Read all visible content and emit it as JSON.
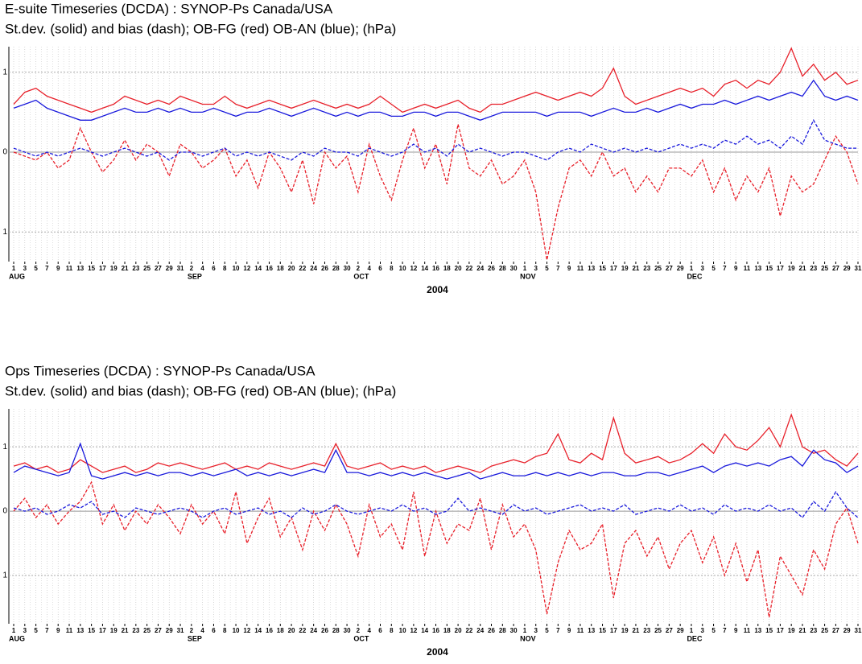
{
  "chart_data": [
    {
      "type": "line",
      "title": "E-suite Timeseries (DCDA) : SYNOP-Ps  Canada/USA",
      "subtitle": "St.dev. (solid) and bias (dash);  OB-FG (red) OB-AN (blue); (hPa)",
      "xlabel": "2004",
      "categories": [
        "1",
        "3",
        "5",
        "7",
        "9",
        "11",
        "13",
        "15",
        "17",
        "19",
        "21",
        "23",
        "25",
        "27",
        "29",
        "31",
        "2",
        "4",
        "6",
        "8",
        "10",
        "12",
        "14",
        "16",
        "18",
        "20",
        "22",
        "24",
        "26",
        "28",
        "30",
        "2",
        "4",
        "6",
        "8",
        "10",
        "12",
        "14",
        "16",
        "18",
        "20",
        "22",
        "24",
        "26",
        "28",
        "30",
        "1",
        "3",
        "5",
        "7",
        "9",
        "11",
        "13",
        "15",
        "17",
        "19",
        "21",
        "23",
        "25",
        "27",
        "29",
        "1",
        "3",
        "5",
        "7",
        "9",
        "11",
        "13",
        "15",
        "17",
        "19",
        "21",
        "23",
        "25",
        "27",
        "29",
        "31"
      ],
      "month_labels": [
        "AUG",
        null,
        null,
        null,
        null,
        null,
        null,
        null,
        null,
        null,
        null,
        null,
        null,
        null,
        null,
        null,
        "SEP",
        null,
        null,
        null,
        null,
        null,
        null,
        null,
        null,
        null,
        null,
        null,
        null,
        null,
        null,
        "OCT",
        null,
        null,
        null,
        null,
        null,
        null,
        null,
        null,
        null,
        null,
        null,
        null,
        null,
        null,
        "NOV",
        null,
        null,
        null,
        null,
        null,
        null,
        null,
        null,
        null,
        null,
        null,
        null,
        null,
        null,
        "DEC",
        null,
        null,
        null,
        null,
        null,
        null,
        null,
        null,
        null,
        null,
        null,
        null,
        null,
        null,
        null
      ],
      "ylim": [
        -1.37,
        1.32
      ],
      "yticks": [
        {
          "value": -1,
          "label": "1"
        },
        0,
        1
      ],
      "grid": true,
      "series": [
        {
          "color": "#e8202a",
          "dash": false,
          "values": [
            0.6,
            0.75,
            0.8,
            0.7,
            0.65,
            0.6,
            0.55,
            0.5,
            0.55,
            0.6,
            0.7,
            0.65,
            0.6,
            0.65,
            0.6,
            0.7,
            0.65,
            0.6,
            0.6,
            0.7,
            0.6,
            0.55,
            0.6,
            0.65,
            0.6,
            0.55,
            0.6,
            0.65,
            0.6,
            0.55,
            0.6,
            0.55,
            0.6,
            0.7,
            0.6,
            0.5,
            0.55,
            0.6,
            0.55,
            0.6,
            0.65,
            0.55,
            0.5,
            0.6,
            0.6,
            0.65,
            0.7,
            0.75,
            0.7,
            0.65,
            0.7,
            0.75,
            0.7,
            0.8,
            1.05,
            0.7,
            0.6,
            0.65,
            0.7,
            0.75,
            0.8,
            0.75,
            0.8,
            0.7,
            0.85,
            0.9,
            0.8,
            0.9,
            0.85,
            1.0,
            1.3,
            0.95,
            1.1,
            0.9,
            1.0,
            0.85,
            0.9
          ]
        },
        {
          "color": "#1a1adc",
          "dash": false,
          "values": [
            0.55,
            0.6,
            0.65,
            0.55,
            0.5,
            0.45,
            0.4,
            0.4,
            0.45,
            0.5,
            0.55,
            0.5,
            0.5,
            0.55,
            0.5,
            0.55,
            0.5,
            0.5,
            0.55,
            0.5,
            0.45,
            0.5,
            0.5,
            0.55,
            0.5,
            0.45,
            0.5,
            0.55,
            0.5,
            0.45,
            0.5,
            0.45,
            0.5,
            0.5,
            0.45,
            0.45,
            0.5,
            0.5,
            0.45,
            0.5,
            0.5,
            0.45,
            0.4,
            0.45,
            0.5,
            0.5,
            0.5,
            0.5,
            0.45,
            0.5,
            0.5,
            0.5,
            0.45,
            0.5,
            0.55,
            0.5,
            0.5,
            0.55,
            0.5,
            0.55,
            0.6,
            0.55,
            0.6,
            0.6,
            0.65,
            0.6,
            0.65,
            0.7,
            0.65,
            0.7,
            0.75,
            0.7,
            0.9,
            0.7,
            0.65,
            0.7,
            0.65
          ]
        },
        {
          "color": "#e8202a",
          "dash": true,
          "values": [
            0.0,
            -0.05,
            -0.1,
            0.0,
            -0.2,
            -0.1,
            0.3,
            0.0,
            -0.25,
            -0.1,
            0.15,
            -0.1,
            0.1,
            0.0,
            -0.3,
            0.1,
            0.0,
            -0.2,
            -0.1,
            0.05,
            -0.3,
            -0.1,
            -0.45,
            0.0,
            -0.2,
            -0.5,
            -0.1,
            -0.65,
            0.0,
            -0.2,
            -0.05,
            -0.5,
            0.1,
            -0.3,
            -0.6,
            -0.1,
            0.3,
            -0.2,
            0.1,
            -0.4,
            0.35,
            -0.2,
            -0.3,
            -0.1,
            -0.4,
            -0.3,
            -0.1,
            -0.5,
            -1.35,
            -0.7,
            -0.2,
            -0.1,
            -0.3,
            0.0,
            -0.3,
            -0.2,
            -0.5,
            -0.3,
            -0.5,
            -0.2,
            -0.2,
            -0.3,
            -0.1,
            -0.5,
            -0.2,
            -0.6,
            -0.3,
            -0.5,
            -0.2,
            -0.8,
            -0.3,
            -0.5,
            -0.4,
            -0.1,
            0.2,
            0.0,
            -0.4
          ]
        },
        {
          "color": "#1a1adc",
          "dash": true,
          "values": [
            0.05,
            0.0,
            -0.05,
            0.0,
            -0.05,
            0.0,
            0.05,
            0.0,
            -0.05,
            0.0,
            0.05,
            0.0,
            -0.05,
            0.0,
            -0.1,
            0.0,
            0.0,
            -0.05,
            0.0,
            0.05,
            -0.05,
            0.0,
            -0.05,
            0.0,
            -0.05,
            -0.1,
            0.0,
            -0.05,
            0.05,
            0.0,
            0.0,
            -0.05,
            0.05,
            0.0,
            -0.05,
            0.0,
            0.1,
            0.0,
            0.05,
            -0.05,
            0.1,
            0.0,
            0.05,
            0.0,
            -0.05,
            0.0,
            0.0,
            -0.05,
            -0.1,
            0.0,
            0.05,
            0.0,
            0.1,
            0.05,
            0.0,
            0.05,
            0.0,
            0.05,
            0.0,
            0.05,
            0.1,
            0.05,
            0.1,
            0.05,
            0.15,
            0.1,
            0.2,
            0.1,
            0.15,
            0.05,
            0.2,
            0.1,
            0.4,
            0.15,
            0.1,
            0.05,
            0.05
          ]
        }
      ]
    },
    {
      "type": "line",
      "title": "Ops Timeseries (DCDA)  : SYNOP-Ps  Canada/USA",
      "subtitle": "St.dev. (solid) and bias (dash); OB-FG (red) OB-AN (blue); (hPa)",
      "xlabel": "2004",
      "categories": [
        "1",
        "3",
        "5",
        "7",
        "9",
        "11",
        "13",
        "15",
        "17",
        "19",
        "21",
        "23",
        "25",
        "27",
        "29",
        "31",
        "2",
        "4",
        "6",
        "8",
        "10",
        "12",
        "14",
        "16",
        "18",
        "20",
        "22",
        "24",
        "26",
        "28",
        "30",
        "2",
        "4",
        "6",
        "8",
        "10",
        "12",
        "14",
        "16",
        "18",
        "20",
        "22",
        "24",
        "26",
        "28",
        "30",
        "1",
        "3",
        "5",
        "7",
        "9",
        "11",
        "13",
        "15",
        "17",
        "19",
        "21",
        "23",
        "25",
        "27",
        "29",
        "1",
        "3",
        "5",
        "7",
        "9",
        "11",
        "13",
        "15",
        "17",
        "19",
        "21",
        "23",
        "25",
        "27",
        "29",
        "31"
      ],
      "month_labels": [
        "AUG",
        null,
        null,
        null,
        null,
        null,
        null,
        null,
        null,
        null,
        null,
        null,
        null,
        null,
        null,
        null,
        "SEP",
        null,
        null,
        null,
        null,
        null,
        null,
        null,
        null,
        null,
        null,
        null,
        null,
        null,
        null,
        "OCT",
        null,
        null,
        null,
        null,
        null,
        null,
        null,
        null,
        null,
        null,
        null,
        null,
        null,
        null,
        "NOV",
        null,
        null,
        null,
        null,
        null,
        null,
        null,
        null,
        null,
        null,
        null,
        null,
        null,
        null,
        "DEC",
        null,
        null,
        null,
        null,
        null,
        null,
        null,
        null,
        null,
        null,
        null,
        null,
        null,
        null,
        null
      ],
      "ylim": [
        -1.75,
        1.59
      ],
      "yticks": [
        {
          "value": -1,
          "label": "1"
        },
        0,
        1
      ],
      "grid": true,
      "series": [
        {
          "color": "#e8202a",
          "dash": false,
          "values": [
            0.7,
            0.75,
            0.65,
            0.7,
            0.6,
            0.65,
            0.8,
            0.7,
            0.6,
            0.65,
            0.7,
            0.6,
            0.65,
            0.75,
            0.7,
            0.75,
            0.7,
            0.65,
            0.7,
            0.75,
            0.65,
            0.7,
            0.65,
            0.75,
            0.7,
            0.65,
            0.7,
            0.75,
            0.7,
            1.05,
            0.7,
            0.65,
            0.7,
            0.75,
            0.65,
            0.7,
            0.65,
            0.7,
            0.6,
            0.65,
            0.7,
            0.65,
            0.6,
            0.7,
            0.75,
            0.8,
            0.75,
            0.85,
            0.9,
            1.2,
            0.8,
            0.75,
            0.9,
            0.8,
            1.45,
            0.9,
            0.75,
            0.8,
            0.85,
            0.75,
            0.8,
            0.9,
            1.05,
            0.9,
            1.2,
            1.0,
            0.95,
            1.1,
            1.3,
            1.0,
            1.5,
            1.0,
            0.9,
            0.95,
            0.8,
            0.7,
            0.9
          ]
        },
        {
          "color": "#1a1adc",
          "dash": false,
          "values": [
            0.6,
            0.7,
            0.65,
            0.6,
            0.55,
            0.6,
            1.05,
            0.55,
            0.5,
            0.55,
            0.6,
            0.55,
            0.6,
            0.55,
            0.6,
            0.6,
            0.55,
            0.6,
            0.55,
            0.6,
            0.65,
            0.55,
            0.6,
            0.55,
            0.6,
            0.55,
            0.6,
            0.65,
            0.6,
            0.95,
            0.6,
            0.6,
            0.55,
            0.6,
            0.55,
            0.6,
            0.55,
            0.6,
            0.55,
            0.5,
            0.55,
            0.6,
            0.5,
            0.55,
            0.6,
            0.55,
            0.55,
            0.6,
            0.55,
            0.6,
            0.55,
            0.6,
            0.55,
            0.6,
            0.6,
            0.55,
            0.55,
            0.6,
            0.6,
            0.55,
            0.6,
            0.65,
            0.7,
            0.6,
            0.7,
            0.75,
            0.7,
            0.75,
            0.7,
            0.8,
            0.85,
            0.7,
            0.95,
            0.8,
            0.75,
            0.6,
            0.7
          ]
        },
        {
          "color": "#e8202a",
          "dash": true,
          "values": [
            0.0,
            0.2,
            -0.1,
            0.1,
            -0.2,
            0.0,
            0.15,
            0.45,
            -0.2,
            0.1,
            -0.3,
            0.0,
            -0.2,
            0.1,
            -0.1,
            -0.35,
            0.1,
            -0.2,
            0.0,
            -0.35,
            0.3,
            -0.5,
            -0.1,
            0.2,
            -0.4,
            -0.1,
            -0.6,
            0.0,
            -0.3,
            0.1,
            -0.2,
            -0.7,
            0.1,
            -0.4,
            -0.2,
            -0.6,
            0.3,
            -0.7,
            0.0,
            -0.5,
            -0.2,
            -0.3,
            0.2,
            -0.6,
            0.1,
            -0.4,
            -0.2,
            -0.6,
            -1.6,
            -0.8,
            -0.3,
            -0.6,
            -0.5,
            -0.2,
            -1.35,
            -0.5,
            -0.3,
            -0.7,
            -0.4,
            -0.9,
            -0.5,
            -0.3,
            -0.8,
            -0.4,
            -1.0,
            -0.5,
            -1.1,
            -0.6,
            -1.65,
            -0.7,
            -1.0,
            -1.3,
            -0.6,
            -0.9,
            -0.2,
            0.05,
            -0.5
          ]
        },
        {
          "color": "#1a1adc",
          "dash": true,
          "values": [
            0.05,
            0.0,
            0.05,
            -0.05,
            0.0,
            0.1,
            0.05,
            0.15,
            -0.05,
            0.0,
            -0.1,
            0.05,
            0.0,
            -0.05,
            0.0,
            0.05,
            0.0,
            -0.1,
            0.0,
            0.05,
            -0.05,
            0.0,
            0.05,
            -0.05,
            0.0,
            -0.1,
            0.05,
            -0.05,
            0.0,
            0.1,
            0.0,
            -0.05,
            0.0,
            0.05,
            0.0,
            0.1,
            0.0,
            0.05,
            -0.05,
            0.0,
            0.2,
            0.0,
            0.05,
            0.0,
            -0.05,
            0.1,
            0.0,
            0.05,
            -0.05,
            0.0,
            0.05,
            0.1,
            0.0,
            0.05,
            0.0,
            0.1,
            -0.05,
            0.0,
            0.05,
            0.0,
            0.1,
            0.0,
            0.05,
            -0.05,
            0.1,
            0.0,
            0.05,
            0.0,
            0.1,
            0.0,
            0.05,
            -0.1,
            0.15,
            0.0,
            0.3,
            0.05,
            -0.1
          ]
        }
      ]
    }
  ]
}
